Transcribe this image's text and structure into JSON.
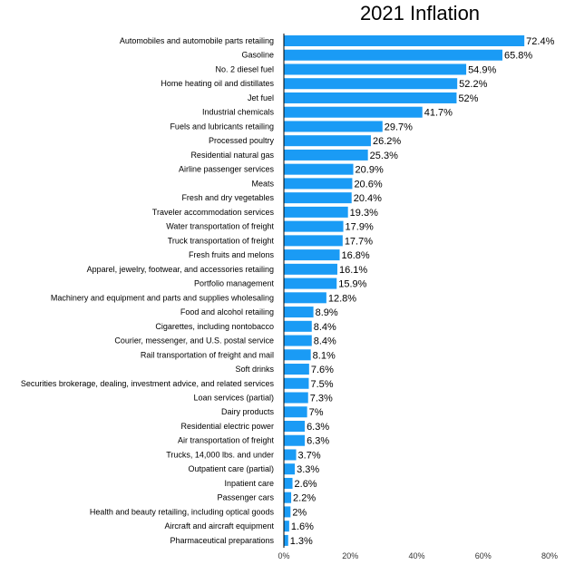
{
  "chart_data": {
    "type": "bar",
    "orientation": "horizontal",
    "title": "2021 Inflation",
    "xlabel": "",
    "ylabel": "",
    "xlim": [
      0,
      80
    ],
    "x_ticks": [
      "0%",
      "20%",
      "40%",
      "60%",
      "80%"
    ],
    "grid": false,
    "bar_color": "#1a9bf5",
    "categories": [
      "Automobiles and automobile parts retailing",
      "Gasoline",
      "No. 2 diesel fuel",
      "Home heating oil and distillates",
      "Jet fuel",
      "Industrial chemicals",
      "Fuels and lubricants retailing",
      "Processed poultry",
      "Residential natural gas",
      "Airline passenger services",
      "Meats",
      "Fresh and dry vegetables",
      "Traveler accommodation services",
      "Water transportation of freight",
      "Truck transportation of freight",
      "Fresh fruits and melons",
      "Apparel, jewelry, footwear, and accessories retailing",
      "Portfolio management",
      "Machinery and equipment and parts and supplies wholesaling",
      "Food and alcohol retailing",
      "Cigarettes, including nontobacco",
      "Courier, messenger, and U.S. postal service",
      "Rail transportation of freight and mail",
      "Soft drinks",
      "Securities brokerage, dealing, investment advice, and related services",
      "Loan services (partial)",
      "Dairy products",
      "Residential electric power",
      "Air transportation of freight",
      "Trucks, 14,000 lbs. and under",
      "Outpatient care (partial)",
      "Inpatient care",
      "Passenger cars",
      "Health and beauty retailing, including optical goods",
      "Aircraft and aircraft equipment",
      "Pharmaceutical preparations"
    ],
    "values": [
      72.4,
      65.8,
      54.9,
      52.2,
      52,
      41.7,
      29.7,
      26.2,
      25.3,
      20.9,
      20.6,
      20.4,
      19.3,
      17.9,
      17.7,
      16.8,
      16.1,
      15.9,
      12.8,
      8.9,
      8.4,
      8.4,
      8.1,
      7.6,
      7.5,
      7.3,
      7,
      6.3,
      6.3,
      3.7,
      3.3,
      2.6,
      2.2,
      2,
      1.6,
      1.3
    ],
    "data_labels": [
      "72.4%",
      "65.8%",
      "54.9%",
      "52.2%",
      "52%",
      "41.7%",
      "29.7%",
      "26.2%",
      "25.3%",
      "20.9%",
      "20.6%",
      "20.4%",
      "19.3%",
      "17.9%",
      "17.7%",
      "16.8%",
      "16.1%",
      "15.9%",
      "12.8%",
      "8.9%",
      "8.4%",
      "8.4%",
      "8.1%",
      "7.6%",
      "7.5%",
      "7.3%",
      "7%",
      "6.3%",
      "6.3%",
      "3.7%",
      "3.3%",
      "2.6%",
      "2.2%",
      "2%",
      "1.6%",
      "1.3%"
    ]
  }
}
